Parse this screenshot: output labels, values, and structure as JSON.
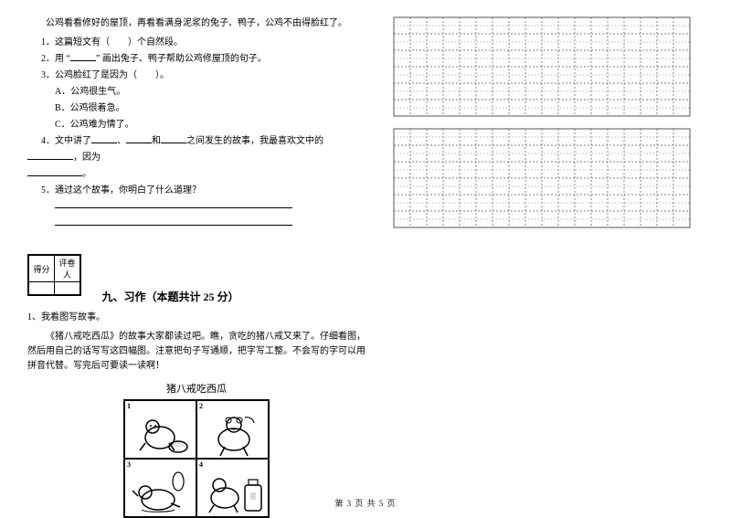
{
  "reading": {
    "intro": "公鸡看看修好的屋顶，再看看满身泥浆的兔子、鸭子，公鸡不由得脸红了。",
    "q1": "1．这篇短文有（　　）个自然段。",
    "q2_pre": "2．用 “",
    "q2_mid": "” 画出兔子、鸭子帮助公鸡修屋顶的句子。",
    "q3": "3．公鸡脸红了是因为（　　）。",
    "q3a": "A．公鸡很生气。",
    "q3b": "B．公鸡很着急。",
    "q3c": "C．公鸡难为情了。",
    "q4_pre": "4．文中讲了",
    "q4_mid1": "、",
    "q4_mid2": "和",
    "q4_mid3": "之间发生的故事，我最喜欢文中的",
    "q4_end": "，因为",
    "q4_blank_end": "。",
    "q5": "5．通过这个故事，你明白了什么道理？"
  },
  "scorebox": {
    "col1": "得分",
    "col2": "评卷人"
  },
  "section9": {
    "title": "九、习作（本题共计 25 分）",
    "item": "1、我看图写故事。",
    "desc": "《猪八戒吃西瓜》的故事大家都读过吧。瞧，贪吃的猪八戒又来了。仔细看图，然后用自己的话写写这四幅图。注意把句子写通顺，把字写工整。不会写的字可以用拼音代替。写完后可要读一读啊！",
    "comic_title": "猪八戒吃西瓜",
    "panel_nums": [
      "1",
      "2",
      "3",
      "4"
    ]
  },
  "grid": {
    "rows": 6,
    "cols": 18,
    "cell": 18,
    "blocks": 2,
    "line_color": "#555555",
    "dash": "2,2"
  },
  "footer": "第 3 页  共 5 页"
}
